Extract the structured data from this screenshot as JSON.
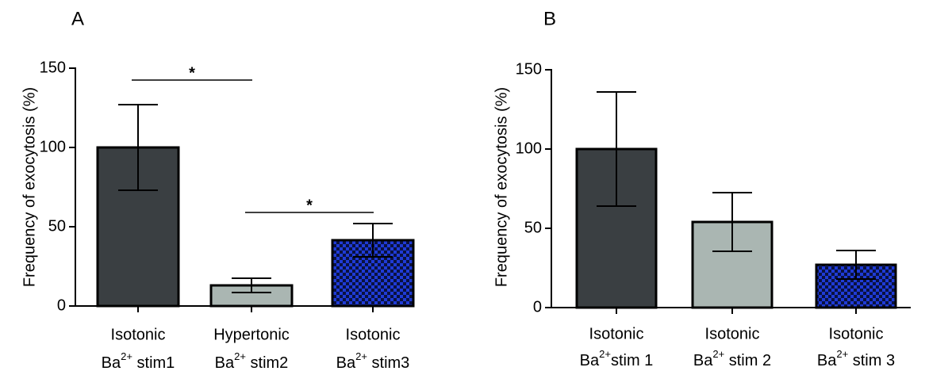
{
  "colors": {
    "dark": "#3a3f42",
    "light": "#aab6b2",
    "blue": "#1f3bd6",
    "blue_alt": "#0a1240",
    "axis": "#000000"
  },
  "chart_data": [
    {
      "panel": "A",
      "type": "bar",
      "ylabel": "Frequency of exocytosis (%)",
      "ylim": [
        0,
        150
      ],
      "yticks": [
        0,
        50,
        100,
        150
      ],
      "ytick_labels": [
        "0",
        "50",
        "100",
        "150"
      ],
      "categories": [
        {
          "line1": "Isotonic",
          "base": "Ba",
          "sup": "2+",
          "rest": " stim1"
        },
        {
          "line1": "Hypertonic",
          "base": "Ba",
          "sup": "2+",
          "rest": " stim2"
        },
        {
          "line1": "Isotonic",
          "base": "Ba",
          "sup": "2+",
          "rest": " stim3"
        }
      ],
      "values": [
        100,
        13,
        41.5
      ],
      "errors": [
        27,
        4.5,
        10.5
      ],
      "fills": [
        "dark",
        "light",
        "checker"
      ],
      "significance": [
        {
          "from": 0,
          "to": 1,
          "label": "*"
        },
        {
          "from": 1,
          "to": 2,
          "label": "*"
        }
      ]
    },
    {
      "panel": "B",
      "type": "bar",
      "ylabel": "Frequency of exocytosis (%)",
      "ylim": [
        0,
        150
      ],
      "yticks": [
        0,
        50,
        100,
        150
      ],
      "ytick_labels": [
        "0",
        "50",
        "100",
        "150"
      ],
      "categories": [
        {
          "line1": "Isotonic",
          "base": "Ba",
          "sup": "2+",
          "rest": "stim 1"
        },
        {
          "line1": "Isotonic",
          "base": "Ba",
          "sup": "2+",
          "rest": " stim 2"
        },
        {
          "line1": "Isotonic",
          "base": "Ba",
          "sup": "2+",
          "rest": " stim 3"
        }
      ],
      "values": [
        100,
        54,
        27
      ],
      "errors": [
        36,
        18.5,
        9
      ],
      "fills": [
        "dark",
        "light",
        "checker"
      ],
      "significance": []
    }
  ]
}
